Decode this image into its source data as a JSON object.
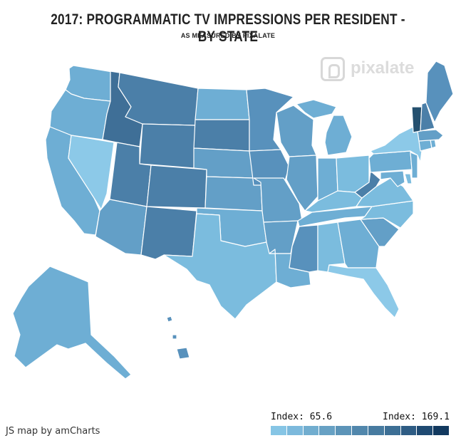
{
  "title": "2017: PROGRAMMATIC TV IMPRESSIONS PER RESIDENT - BY STATE",
  "subtitle": "AS MEASURED BY PIXALATE",
  "watermark": "pixalate",
  "credit": "JS map by amCharts",
  "legend": {
    "min_label": "Index: 65.6",
    "max_label": "Index: 169.1",
    "colors": [
      "#86c5e5",
      "#7cb9dc",
      "#71adcf",
      "#67a1c4",
      "#5c94b8",
      "#5187ac",
      "#477ba0",
      "#3d6f95",
      "#2e5c84",
      "#1f4a72",
      "#12395f"
    ]
  },
  "map_data": {
    "type": "choropleth",
    "region": "United States",
    "classes": {
      "c0": "#8cc9e8",
      "c1": "#7bbcde",
      "c2": "#6eaed4",
      "c3": "#639fc7",
      "c4": "#5891bc",
      "c5": "#4b7fa8",
      "c6": "#3f6f97",
      "c7": "#24506f"
    },
    "states": [
      {
        "id": "WA",
        "name": "Washington",
        "class": "c2"
      },
      {
        "id": "OR",
        "name": "Oregon",
        "class": "c2"
      },
      {
        "id": "CA",
        "name": "California",
        "class": "c2"
      },
      {
        "id": "NV",
        "name": "Nevada",
        "class": "c0"
      },
      {
        "id": "ID",
        "name": "Idaho",
        "class": "c6"
      },
      {
        "id": "MT",
        "name": "Montana",
        "class": "c5"
      },
      {
        "id": "WY",
        "name": "Wyoming",
        "class": "c5"
      },
      {
        "id": "UT",
        "name": "Utah",
        "class": "c5"
      },
      {
        "id": "AZ",
        "name": "Arizona",
        "class": "c3"
      },
      {
        "id": "CO",
        "name": "Colorado",
        "class": "c5"
      },
      {
        "id": "NM",
        "name": "New Mexico",
        "class": "c5"
      },
      {
        "id": "ND",
        "name": "North Dakota",
        "class": "c2"
      },
      {
        "id": "SD",
        "name": "South Dakota",
        "class": "c5"
      },
      {
        "id": "NE",
        "name": "Nebraska",
        "class": "c3"
      },
      {
        "id": "KS",
        "name": "Kansas",
        "class": "c3"
      },
      {
        "id": "OK",
        "name": "Oklahoma",
        "class": "c2"
      },
      {
        "id": "TX",
        "name": "Texas",
        "class": "c1"
      },
      {
        "id": "MN",
        "name": "Minnesota",
        "class": "c4"
      },
      {
        "id": "IA",
        "name": "Iowa",
        "class": "c4"
      },
      {
        "id": "MO",
        "name": "Missouri",
        "class": "c3"
      },
      {
        "id": "AR",
        "name": "Arkansas",
        "class": "c3"
      },
      {
        "id": "LA",
        "name": "Louisiana",
        "class": "c2"
      },
      {
        "id": "WI",
        "name": "Wisconsin",
        "class": "c3"
      },
      {
        "id": "IL",
        "name": "Illinois",
        "class": "c3"
      },
      {
        "id": "MI",
        "name": "Michigan",
        "class": "c2"
      },
      {
        "id": "IN",
        "name": "Indiana",
        "class": "c2"
      },
      {
        "id": "OH",
        "name": "Ohio",
        "class": "c1"
      },
      {
        "id": "KY",
        "name": "Kentucky",
        "class": "c1"
      },
      {
        "id": "TN",
        "name": "Tennessee",
        "class": "c2"
      },
      {
        "id": "MS",
        "name": "Mississippi",
        "class": "c4"
      },
      {
        "id": "AL",
        "name": "Alabama",
        "class": "c1"
      },
      {
        "id": "GA",
        "name": "Georgia",
        "class": "c2"
      },
      {
        "id": "FL",
        "name": "Florida",
        "class": "c0"
      },
      {
        "id": "SC",
        "name": "South Carolina",
        "class": "c3"
      },
      {
        "id": "NC",
        "name": "North Carolina",
        "class": "c1"
      },
      {
        "id": "VA",
        "name": "Virginia",
        "class": "c1"
      },
      {
        "id": "WV",
        "name": "West Virginia",
        "class": "c5"
      },
      {
        "id": "PA",
        "name": "Pennsylvania",
        "class": "c2"
      },
      {
        "id": "NY",
        "name": "New York",
        "class": "c0"
      },
      {
        "id": "NJ",
        "name": "New Jersey",
        "class": "c2"
      },
      {
        "id": "DE",
        "name": "Delaware",
        "class": "c1"
      },
      {
        "id": "MD",
        "name": "Maryland",
        "class": "c2"
      },
      {
        "id": "CT",
        "name": "Connecticut",
        "class": "c2"
      },
      {
        "id": "RI",
        "name": "Rhode Island",
        "class": "c2"
      },
      {
        "id": "MA",
        "name": "Massachusetts",
        "class": "c3"
      },
      {
        "id": "VT",
        "name": "Vermont",
        "class": "c7"
      },
      {
        "id": "NH",
        "name": "New Hampshire",
        "class": "c5"
      },
      {
        "id": "ME",
        "name": "Maine",
        "class": "c4"
      },
      {
        "id": "AK",
        "name": "Alaska",
        "class": "c2"
      },
      {
        "id": "HI",
        "name": "Hawaii",
        "class": "c4"
      }
    ]
  }
}
